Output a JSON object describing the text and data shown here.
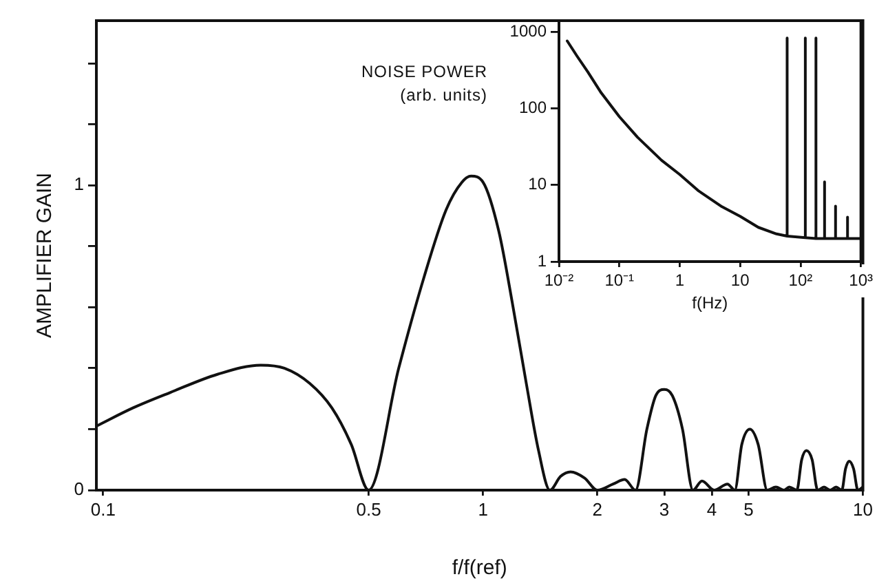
{
  "chart_data": [
    {
      "type": "line",
      "xlabel": "f/f(ref)",
      "ylabel": "AMPLIFIER GAIN",
      "log": "x",
      "grid": false,
      "legend": false,
      "marker": "none",
      "line_style": "solid",
      "xlim": [
        0.096,
        10
      ],
      "xticks": [
        0.1,
        0.5,
        1,
        2,
        3,
        4,
        5,
        10
      ],
      "ylim": [
        0,
        1.54
      ],
      "yticks": [
        0,
        {
          "value": 0.2,
          "label": null
        },
        {
          "value": 0.4,
          "label": null
        },
        {
          "value": 0.6,
          "label": null
        },
        {
          "value": 0.8,
          "label": null
        },
        1,
        {
          "value": 1.2,
          "label": null
        },
        {
          "value": 1.4,
          "label": null
        }
      ],
      "series": [
        {
          "color": "#111111",
          "x": [
            0.096,
            0.12,
            0.15,
            0.2,
            0.26,
            0.3,
            0.35,
            0.4,
            0.45,
            0.5,
            0.6,
            0.7,
            0.8,
            0.88,
            0.93,
            1.0,
            1.1,
            1.2,
            1.3,
            1.4,
            1.5,
            1.6,
            1.7,
            1.85,
            2.0,
            2.2,
            2.36,
            2.52,
            2.7,
            2.85,
            3.0,
            3.15,
            3.35,
            3.57,
            3.77,
            4.06,
            4.4,
            4.6,
            4.8,
            5.04,
            5.3,
            5.6,
            5.9,
            6.2,
            6.4,
            6.7,
            6.9,
            7.1,
            7.35,
            7.6,
            7.9,
            8.2,
            8.5,
            8.8,
            9.0,
            9.2,
            9.45,
            9.7,
            10
          ],
          "values": [
            0.21,
            0.27,
            0.32,
            0.38,
            0.41,
            0.4,
            0.35,
            0.27,
            0.15,
            0,
            0.4,
            0.7,
            0.92,
            1.01,
            1.03,
            1.01,
            0.85,
            0.6,
            0.35,
            0.13,
            0,
            0.045,
            0.06,
            0.04,
            0,
            0.02,
            0.035,
            0,
            0.2,
            0.31,
            0.33,
            0.31,
            0.2,
            0,
            0.03,
            0,
            0.02,
            0,
            0.15,
            0.2,
            0.15,
            0,
            0.01,
            0,
            0.01,
            0,
            0.1,
            0.13,
            0.1,
            0,
            0.01,
            0,
            0.01,
            0,
            0.07,
            0.095,
            0.07,
            0,
            0.01
          ]
        }
      ]
    },
    {
      "type": "line",
      "xlabel": "f(Hz)",
      "ylabel": "NOISE POWER\n(arb. units)",
      "log": "xy",
      "grid": false,
      "legend": false,
      "marker": "none",
      "line_style": "solid",
      "xlim": [
        0.01,
        1000
      ],
      "xticks": [
        {
          "value": 0.01,
          "label": "10⁻²"
        },
        {
          "value": 0.1,
          "label": "10⁻¹"
        },
        1,
        10,
        {
          "value": 100,
          "label": "10²"
        },
        {
          "value": 1000,
          "label": "10³"
        }
      ],
      "ylim": [
        1,
        1400
      ],
      "yticks": [
        1,
        10,
        100,
        1000
      ],
      "series": [
        {
          "color": "#111111",
          "x": [
            0.0137,
            0.02,
            0.03,
            0.05,
            0.1,
            0.2,
            0.5,
            1,
            2,
            5,
            10,
            20,
            40,
            60,
            60,
            60,
            120,
            120,
            120,
            180,
            180,
            180,
            250,
            250,
            250,
            380,
            380,
            380,
            600,
            600,
            600,
            1000
          ],
          "values": [
            760,
            480,
            300,
            160,
            78,
            42,
            21,
            13.7,
            8.5,
            5.2,
            3.9,
            2.8,
            2.3,
            2.15,
            830,
            2.15,
            2.05,
            830,
            2.05,
            2.0,
            830,
            2.0,
            2.0,
            11,
            2.0,
            2.0,
            5.3,
            2.0,
            2.0,
            3.8,
            2.0,
            2.0
          ]
        }
      ]
    }
  ]
}
